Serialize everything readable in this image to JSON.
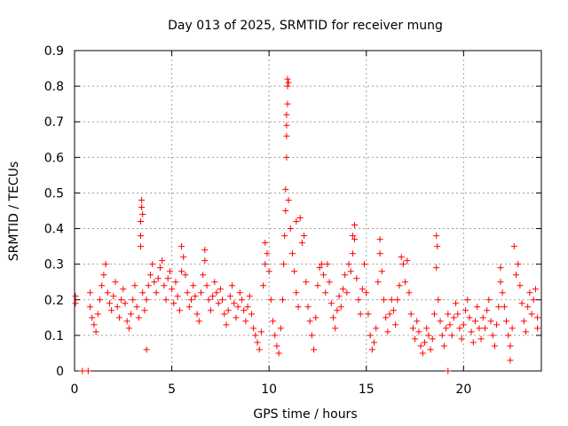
{
  "chart_data": {
    "type": "scatter",
    "title": "Day 013 of 2025, SRMTID for receiver mung",
    "xlabel": "GPS time / hours",
    "ylabel": "SRMTID / TECUs",
    "xlim": [
      0,
      24
    ],
    "ylim": [
      0,
      0.9
    ],
    "xticks": [
      0,
      5,
      10,
      15,
      20
    ],
    "yticks": [
      0,
      0.1,
      0.2,
      0.3,
      0.4,
      0.5,
      0.6,
      0.7,
      0.8,
      0.9
    ],
    "xtick_labels": [
      "0",
      "5",
      "10",
      "15",
      "20"
    ],
    "ytick_labels": [
      "0",
      "0.1",
      "0.2",
      "0.3",
      "0.4",
      "0.5",
      "0.6",
      "0.7",
      "0.8",
      "0.9"
    ],
    "grid": true,
    "marker": "+",
    "color": "#ff0000",
    "series": [
      {
        "name": "SRMTID",
        "points": [
          [
            0.05,
            0.21
          ],
          [
            0.05,
            0.19
          ],
          [
            0.4,
            0.0
          ],
          [
            0.7,
            0.0
          ],
          [
            19.2,
            0.0
          ],
          [
            0.8,
            0.22
          ],
          [
            0.8,
            0.18
          ],
          [
            0.9,
            0.15
          ],
          [
            1.0,
            0.13
          ],
          [
            1.1,
            0.11
          ],
          [
            1.2,
            0.16
          ],
          [
            1.3,
            0.2
          ],
          [
            1.4,
            0.24
          ],
          [
            1.5,
            0.27
          ],
          [
            1.6,
            0.3
          ],
          [
            1.7,
            0.22
          ],
          [
            1.8,
            0.19
          ],
          [
            1.9,
            0.17
          ],
          [
            2.0,
            0.21
          ],
          [
            2.1,
            0.25
          ],
          [
            2.2,
            0.18
          ],
          [
            2.3,
            0.15
          ],
          [
            2.4,
            0.2
          ],
          [
            2.5,
            0.23
          ],
          [
            2.6,
            0.19
          ],
          [
            2.7,
            0.14
          ],
          [
            2.8,
            0.12
          ],
          [
            2.9,
            0.16
          ],
          [
            3.0,
            0.2
          ],
          [
            3.1,
            0.24
          ],
          [
            3.2,
            0.18
          ],
          [
            3.3,
            0.15
          ],
          [
            3.4,
            0.38
          ],
          [
            3.4,
            0.42
          ],
          [
            3.45,
            0.46
          ],
          [
            3.45,
            0.48
          ],
          [
            3.5,
            0.44
          ],
          [
            3.4,
            0.35
          ],
          [
            3.5,
            0.22
          ],
          [
            3.6,
            0.17
          ],
          [
            3.7,
            0.06
          ],
          [
            3.7,
            0.2
          ],
          [
            3.8,
            0.24
          ],
          [
            3.9,
            0.27
          ],
          [
            4.0,
            0.3
          ],
          [
            4.1,
            0.25
          ],
          [
            4.2,
            0.22
          ],
          [
            4.3,
            0.26
          ],
          [
            4.4,
            0.29
          ],
          [
            4.5,
            0.31
          ],
          [
            4.6,
            0.24
          ],
          [
            4.7,
            0.2
          ],
          [
            4.8,
            0.26
          ],
          [
            4.9,
            0.28
          ],
          [
            5.0,
            0.23
          ],
          [
            5.1,
            0.19
          ],
          [
            5.2,
            0.25
          ],
          [
            5.3,
            0.21
          ],
          [
            5.4,
            0.17
          ],
          [
            5.5,
            0.28
          ],
          [
            5.6,
            0.32
          ],
          [
            5.5,
            0.35
          ],
          [
            5.7,
            0.27
          ],
          [
            5.8,
            0.22
          ],
          [
            5.9,
            0.18
          ],
          [
            6.0,
            0.2
          ],
          [
            6.1,
            0.24
          ],
          [
            6.2,
            0.21
          ],
          [
            6.3,
            0.16
          ],
          [
            6.4,
            0.14
          ],
          [
            6.5,
            0.22
          ],
          [
            6.6,
            0.27
          ],
          [
            6.7,
            0.34
          ],
          [
            6.7,
            0.31
          ],
          [
            6.8,
            0.24
          ],
          [
            6.9,
            0.2
          ],
          [
            7.0,
            0.17
          ],
          [
            7.1,
            0.21
          ],
          [
            7.2,
            0.25
          ],
          [
            7.3,
            0.22
          ],
          [
            7.4,
            0.19
          ],
          [
            7.5,
            0.23
          ],
          [
            7.6,
            0.2
          ],
          [
            7.7,
            0.16
          ],
          [
            7.8,
            0.13
          ],
          [
            7.9,
            0.17
          ],
          [
            8.0,
            0.21
          ],
          [
            8.1,
            0.24
          ],
          [
            8.2,
            0.19
          ],
          [
            8.3,
            0.15
          ],
          [
            8.4,
            0.18
          ],
          [
            8.5,
            0.22
          ],
          [
            8.6,
            0.2
          ],
          [
            8.7,
            0.17
          ],
          [
            8.8,
            0.14
          ],
          [
            8.9,
            0.18
          ],
          [
            9.0,
            0.21
          ],
          [
            9.1,
            0.16
          ],
          [
            9.2,
            0.12
          ],
          [
            9.3,
            0.1
          ],
          [
            9.4,
            0.08
          ],
          [
            9.5,
            0.06
          ],
          [
            9.6,
            0.11
          ],
          [
            9.7,
            0.24
          ],
          [
            9.8,
            0.3
          ],
          [
            9.9,
            0.33
          ],
          [
            9.8,
            0.36
          ],
          [
            10.0,
            0.28
          ],
          [
            10.1,
            0.2
          ],
          [
            10.2,
            0.14
          ],
          [
            10.3,
            0.1
          ],
          [
            10.4,
            0.07
          ],
          [
            10.5,
            0.05
          ],
          [
            10.6,
            0.12
          ],
          [
            10.7,
            0.2
          ],
          [
            10.75,
            0.3
          ],
          [
            10.8,
            0.38
          ],
          [
            10.85,
            0.45
          ],
          [
            10.85,
            0.51
          ],
          [
            10.9,
            0.6
          ],
          [
            10.9,
            0.66
          ],
          [
            10.9,
            0.69
          ],
          [
            10.9,
            0.72
          ],
          [
            10.95,
            0.75
          ],
          [
            10.95,
            0.8
          ],
          [
            10.95,
            0.82
          ],
          [
            11.0,
            0.81
          ],
          [
            11.0,
            0.48
          ],
          [
            11.1,
            0.4
          ],
          [
            11.2,
            0.33
          ],
          [
            11.3,
            0.28
          ],
          [
            11.4,
            0.22
          ],
          [
            11.5,
            0.18
          ],
          [
            11.4,
            0.42
          ],
          [
            11.6,
            0.43
          ],
          [
            11.7,
            0.36
          ],
          [
            11.8,
            0.38
          ],
          [
            11.9,
            0.25
          ],
          [
            12.0,
            0.18
          ],
          [
            12.1,
            0.14
          ],
          [
            12.2,
            0.1
          ],
          [
            12.3,
            0.06
          ],
          [
            12.4,
            0.15
          ],
          [
            12.5,
            0.24
          ],
          [
            12.6,
            0.29
          ],
          [
            12.7,
            0.3
          ],
          [
            12.8,
            0.27
          ],
          [
            12.9,
            0.22
          ],
          [
            13.0,
            0.3
          ],
          [
            13.1,
            0.25
          ],
          [
            13.2,
            0.19
          ],
          [
            13.3,
            0.15
          ],
          [
            13.4,
            0.12
          ],
          [
            13.5,
            0.17
          ],
          [
            13.6,
            0.21
          ],
          [
            13.7,
            0.18
          ],
          [
            13.8,
            0.23
          ],
          [
            13.9,
            0.27
          ],
          [
            14.0,
            0.22
          ],
          [
            14.1,
            0.3
          ],
          [
            14.2,
            0.28
          ],
          [
            14.3,
            0.33
          ],
          [
            14.3,
            0.38
          ],
          [
            14.4,
            0.41
          ],
          [
            14.4,
            0.37
          ],
          [
            14.5,
            0.26
          ],
          [
            14.6,
            0.2
          ],
          [
            14.7,
            0.16
          ],
          [
            14.8,
            0.23
          ],
          [
            14.9,
            0.3
          ],
          [
            15.0,
            0.22
          ],
          [
            15.1,
            0.16
          ],
          [
            15.2,
            0.1
          ],
          [
            15.3,
            0.06
          ],
          [
            15.4,
            0.08
          ],
          [
            15.5,
            0.12
          ],
          [
            15.6,
            0.25
          ],
          [
            15.7,
            0.33
          ],
          [
            15.7,
            0.37
          ],
          [
            15.8,
            0.28
          ],
          [
            15.9,
            0.2
          ],
          [
            16.0,
            0.15
          ],
          [
            16.1,
            0.11
          ],
          [
            16.2,
            0.16
          ],
          [
            16.3,
            0.2
          ],
          [
            16.4,
            0.17
          ],
          [
            16.5,
            0.13
          ],
          [
            16.6,
            0.2
          ],
          [
            16.7,
            0.24
          ],
          [
            16.8,
            0.32
          ],
          [
            16.9,
            0.3
          ],
          [
            17.0,
            0.25
          ],
          [
            17.1,
            0.31
          ],
          [
            17.2,
            0.22
          ],
          [
            17.3,
            0.16
          ],
          [
            17.4,
            0.12
          ],
          [
            17.5,
            0.09
          ],
          [
            17.6,
            0.14
          ],
          [
            17.7,
            0.11
          ],
          [
            17.8,
            0.07
          ],
          [
            17.9,
            0.05
          ],
          [
            18.0,
            0.08
          ],
          [
            18.1,
            0.12
          ],
          [
            18.2,
            0.1
          ],
          [
            18.3,
            0.06
          ],
          [
            18.4,
            0.09
          ],
          [
            18.5,
            0.16
          ],
          [
            18.6,
            0.38
          ],
          [
            18.65,
            0.35
          ],
          [
            18.6,
            0.29
          ],
          [
            18.7,
            0.2
          ],
          [
            18.8,
            0.14
          ],
          [
            18.9,
            0.1
          ],
          [
            19.0,
            0.07
          ],
          [
            19.1,
            0.12
          ],
          [
            19.2,
            0.16
          ],
          [
            19.3,
            0.13
          ],
          [
            19.4,
            0.1
          ],
          [
            19.5,
            0.15
          ],
          [
            19.6,
            0.19
          ],
          [
            19.7,
            0.16
          ],
          [
            19.8,
            0.12
          ],
          [
            19.9,
            0.09
          ],
          [
            20.0,
            0.13
          ],
          [
            20.1,
            0.17
          ],
          [
            20.2,
            0.2
          ],
          [
            20.3,
            0.15
          ],
          [
            20.4,
            0.11
          ],
          [
            20.5,
            0.08
          ],
          [
            20.6,
            0.14
          ],
          [
            20.7,
            0.18
          ],
          [
            20.8,
            0.12
          ],
          [
            20.9,
            0.09
          ],
          [
            21.0,
            0.15
          ],
          [
            21.1,
            0.12
          ],
          [
            21.2,
            0.17
          ],
          [
            21.3,
            0.2
          ],
          [
            21.4,
            0.14
          ],
          [
            21.5,
            0.1
          ],
          [
            21.6,
            0.07
          ],
          [
            21.7,
            0.13
          ],
          [
            21.8,
            0.18
          ],
          [
            21.9,
            0.25
          ],
          [
            21.9,
            0.29
          ],
          [
            22.0,
            0.22
          ],
          [
            22.1,
            0.18
          ],
          [
            22.2,
            0.14
          ],
          [
            22.3,
            0.1
          ],
          [
            22.4,
            0.07
          ],
          [
            22.4,
            0.03
          ],
          [
            22.5,
            0.12
          ],
          [
            22.6,
            0.35
          ],
          [
            22.7,
            0.27
          ],
          [
            22.8,
            0.3
          ],
          [
            22.9,
            0.24
          ],
          [
            23.0,
            0.19
          ],
          [
            23.1,
            0.14
          ],
          [
            23.2,
            0.11
          ],
          [
            23.3,
            0.18
          ],
          [
            23.4,
            0.22
          ],
          [
            23.5,
            0.16
          ],
          [
            23.6,
            0.2
          ],
          [
            23.7,
            0.23
          ],
          [
            23.8,
            0.15
          ],
          [
            23.8,
            0.12
          ]
        ]
      }
    ]
  }
}
